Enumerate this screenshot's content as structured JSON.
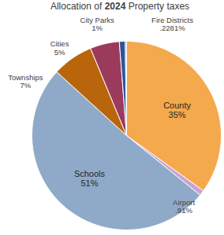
{
  "chart_data": {
    "type": "pie",
    "title": "Allocation of 2024 Property taxes",
    "categories": [
      "County",
      "Airport",
      "Schools",
      "Townships",
      "Cities",
      "City Parks",
      "Fire Districts"
    ],
    "values": [
      35,
      0.91,
      51,
      7,
      5,
      1,
      0.2281
    ],
    "value_labels": [
      "35%",
      ".91%",
      "51%",
      "7%",
      "5%",
      "1%",
      ".2281%"
    ],
    "colors": [
      "#f4a94c",
      "#c9a3d6",
      "#8faac8",
      "#b8650c",
      "#9c3a5c",
      "#2e5597",
      "#a5a5a5"
    ],
    "data_labels": true
  }
}
